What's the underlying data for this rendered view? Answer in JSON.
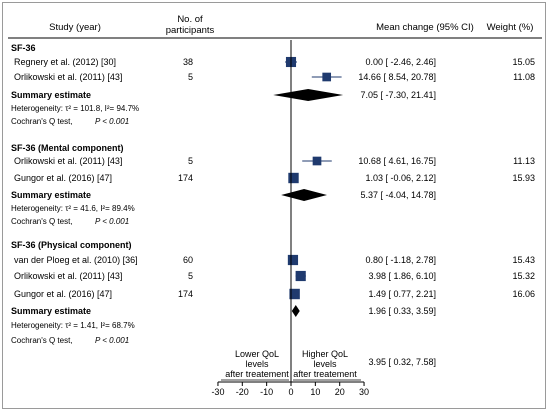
{
  "chart_data": {
    "type": "forest",
    "headers": {
      "study": "Study (year)",
      "participants_line1": "No. of",
      "participants_line2": "participants",
      "effect": "Mean change (95% CI)",
      "weight": "Weight (%)"
    },
    "x_axis": {
      "ticks": [
        -30,
        -20,
        -10,
        0,
        10,
        20,
        30
      ],
      "tick_labels": [
        "-30",
        "-20",
        "-10",
        "0",
        "10",
        "20",
        "30"
      ],
      "range": [
        -30,
        30
      ],
      "left_note": [
        "Lower QoL",
        "levels",
        "after treatement"
      ],
      "right_note": [
        "Higher QoL",
        "levels",
        "after treatement"
      ]
    },
    "groups": [
      {
        "title": "SF-36",
        "studies": [
          {
            "label": "Regnery et al. (2012) [30]",
            "n": "38",
            "mean": 0.0,
            "lo": -2.46,
            "hi": 2.46,
            "ci_text": "0.00 [ -2.46,   2.46]",
            "weight": "15.05",
            "weight_value": 15.05
          },
          {
            "label": "Orlikowski et al. (2011) [43]",
            "n": "5",
            "mean": 14.66,
            "lo": 8.54,
            "hi": 20.78,
            "ci_text": "14.66 [  8.54,  20.78]",
            "weight": "11.08",
            "weight_value": 11.08
          }
        ],
        "summary": {
          "label": "Summary estimate",
          "mean": 7.05,
          "lo": -7.3,
          "hi": 21.41,
          "ci_text": "7.05 [ -7.30,  21.41]"
        },
        "heterogeneity": "Heterogeneity: τ² = 101.8, I²= 94.7%",
        "cochran": "Cochran's Q test,",
        "pvalue": "P < 0.001"
      },
      {
        "title": "SF-36 (Mental component)",
        "studies": [
          {
            "label": "Orlikowski et al. (2011) [43]",
            "n": "5",
            "mean": 10.68,
            "lo": 4.61,
            "hi": 16.75,
            "ci_text": "10.68 [  4.61,  16.75]",
            "weight": "11.13",
            "weight_value": 11.13
          },
          {
            "label": "Gungor et al. (2016) [47]",
            "n": "174",
            "mean": 1.03,
            "lo": -0.06,
            "hi": 2.12,
            "ci_text": "1.03 [ -0.06,   2.12]",
            "weight": "15.93",
            "weight_value": 15.93
          }
        ],
        "summary": {
          "label": "Summary estimate",
          "mean": 5.37,
          "lo": -4.04,
          "hi": 14.78,
          "ci_text": "5.37 [ -4.04,  14.78]"
        },
        "heterogeneity": "Heterogeneity: τ² = 41.6, I²= 89.4%",
        "cochran": "Cochran's Q test,",
        "pvalue": "P < 0.001"
      },
      {
        "title": "SF-36 (Physical component)",
        "studies": [
          {
            "label": "van der Ploeg et al. (2010) [36]",
            "n": "60",
            "mean": 0.8,
            "lo": -1.18,
            "hi": 2.78,
            "ci_text": "0.80 [ -1.18,   2.78]",
            "weight": "15.43",
            "weight_value": 15.43
          },
          {
            "label": "Orlikowski et al. (2011) [43]",
            "n": "5",
            "mean": 3.98,
            "lo": 1.86,
            "hi": 6.1,
            "ci_text": "3.98 [  1.86,   6.10]",
            "weight": "15.32",
            "weight_value": 15.32
          },
          {
            "label": "Gungor et al. (2016) [47]",
            "n": "174",
            "mean": 1.49,
            "lo": 0.77,
            "hi": 2.21,
            "ci_text": "1.49 [  0.77,   2.21]",
            "weight": "16.06",
            "weight_value": 16.06
          }
        ],
        "summary": {
          "label": "Summary estimate",
          "mean": 1.96,
          "lo": 0.33,
          "hi": 3.59,
          "ci_text": "1.96 [  0.33,   3.59]"
        },
        "heterogeneity": "Heterogeneity: τ² = 1.41, I²= 68.7%",
        "cochran": "Cochran's Q test,",
        "pvalue": "P < 0.001"
      }
    ],
    "overall": {
      "mean": 3.95,
      "lo": 0.32,
      "hi": 7.58,
      "ci_text": "3.95 [  0.32,   7.58]"
    },
    "colors": {
      "marker": "#1f3a6e",
      "summary": "#000000",
      "line": "#000000",
      "frame": "#9a9a9a"
    }
  }
}
